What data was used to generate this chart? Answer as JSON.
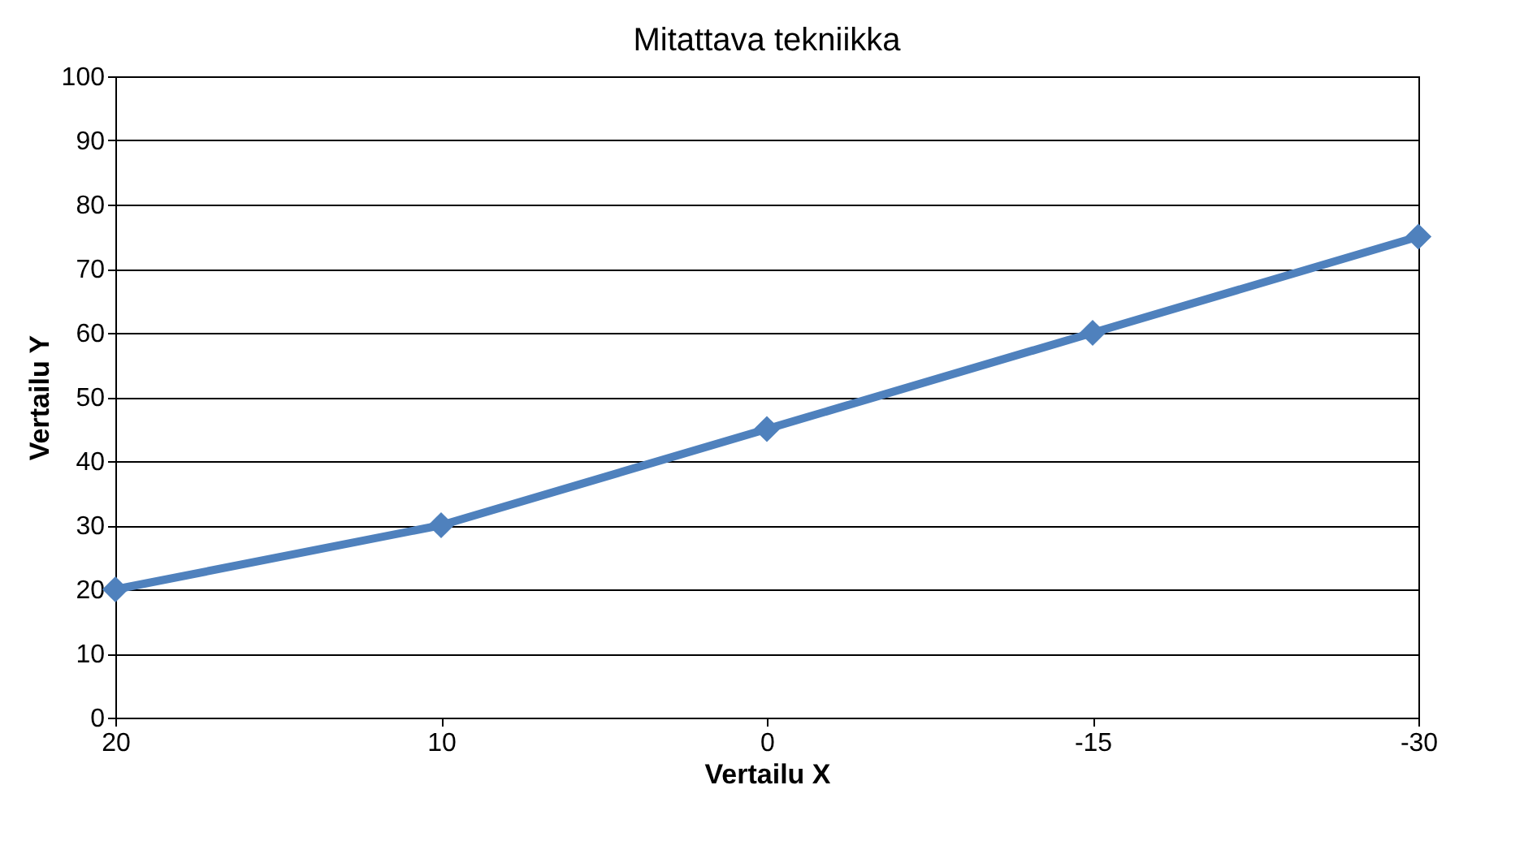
{
  "chart_data": {
    "type": "line",
    "title": "Mitattava tekniikka",
    "xlabel": "Vertailu X",
    "ylabel": "Vertailu Y",
    "categories": [
      "20",
      "10",
      "0",
      "-15",
      "-30"
    ],
    "series": [
      {
        "color": "#4f81bd",
        "values": [
          20,
          30,
          45,
          60,
          75
        ]
      }
    ],
    "ylim": [
      0,
      100
    ],
    "yticks": [
      0,
      10,
      20,
      30,
      40,
      50,
      60,
      70,
      80,
      90,
      100
    ],
    "grid": "y",
    "marker": "diamond",
    "line_style": "solid"
  }
}
